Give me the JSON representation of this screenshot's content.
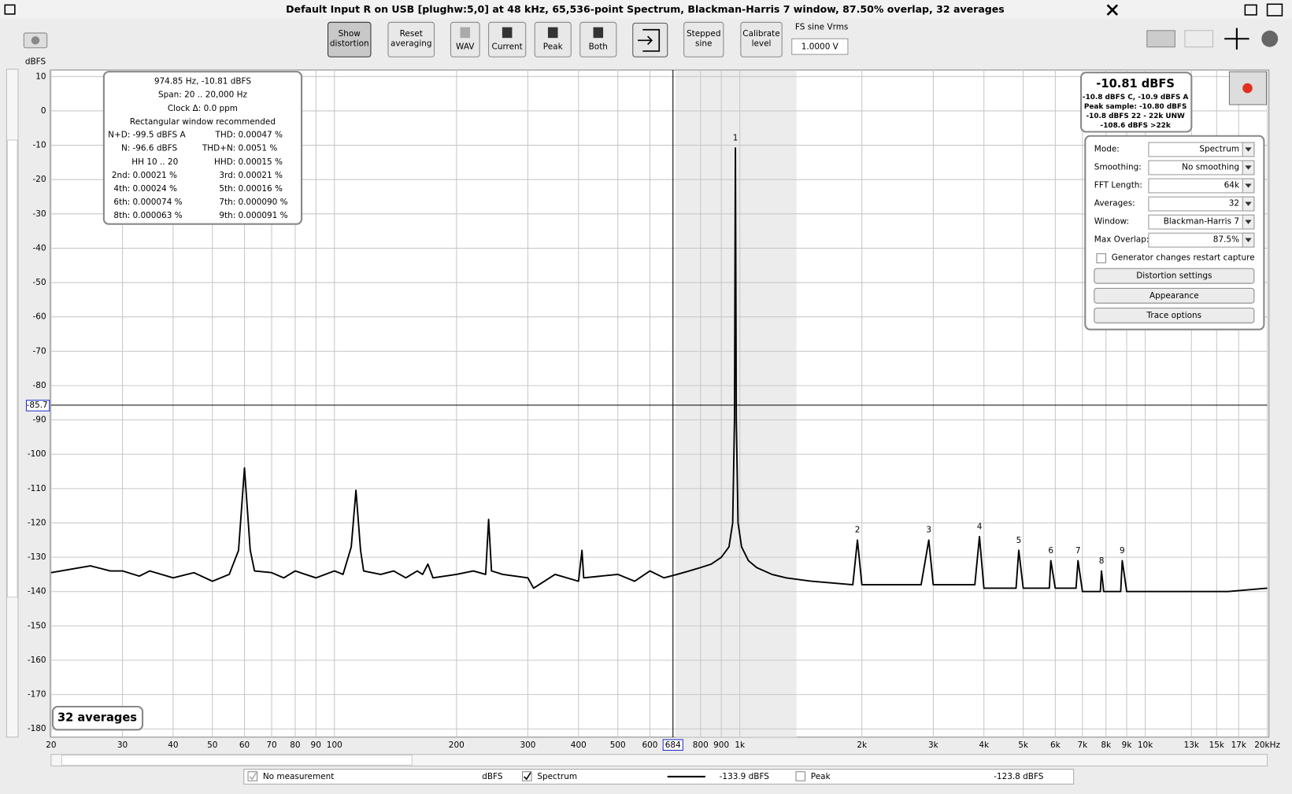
{
  "window_title": "Default Input R on USB [plughw:5,0] at 48 kHz, 65,536-point Spectrum, Blackman-Harris 7 window, 87.50% overlap, 32 averages",
  "toolbar": {
    "buttons": [
      {
        "label": [
          "Show",
          "distortion"
        ],
        "pressed": true
      },
      {
        "label": [
          "Reset",
          "averaging"
        ]
      },
      {
        "label": [
          "WAV"
        ],
        "disabled": true
      },
      {
        "label": [
          "Current"
        ]
      },
      {
        "label": [
          "Peak"
        ]
      },
      {
        "label": [
          "Both"
        ]
      },
      {
        "label": [
          "Stepped",
          "sine"
        ]
      },
      {
        "label": [
          "Calibrate",
          "level"
        ]
      }
    ],
    "fs_label": "FS sine Vrms",
    "fs_value": "1.0000 V"
  },
  "distortion_box": {
    "lines": [
      "974.85 Hz, -10.81 dBFS",
      "Span: 20 .. 20,000 Hz",
      "Clock Δ: 0.0 ppm",
      "Rectangular window recommended"
    ],
    "rows": [
      [
        "N+D:",
        "-99.5 dBFS A",
        "THD:",
        "0.00047 %"
      ],
      [
        "N:",
        "-96.6 dBFS",
        "THD+N:",
        "0.0051 %"
      ],
      [
        "HH 10 .. 20",
        "HHD:",
        "0.00015 %"
      ],
      [
        "2nd:",
        "0.00021 %",
        "3rd:",
        "0.00021 %"
      ],
      [
        "4th:",
        "0.00024 %",
        "5th:",
        "0.00016 %"
      ],
      [
        "6th:",
        "0.000074 %",
        "7th:",
        "0.000090 %"
      ],
      [
        "8th:",
        "0.000063 %",
        "9th:",
        "0.000091 %"
      ]
    ]
  },
  "level_box": {
    "main": "-10.81 dBFS",
    "lines": [
      "-10.8 dBFS C, -10.9 dBFS A",
      "Peak sample: -10.80 dBFS",
      "-10.8 dBFS 22 - 22k UNW",
      "-108.6 dBFS >22k"
    ]
  },
  "settings": {
    "rows": [
      [
        "Mode:",
        "Spectrum"
      ],
      [
        "Smoothing:",
        "No  smoothing"
      ],
      [
        "FFT Length:",
        "64k"
      ],
      [
        "Averages:",
        "32"
      ],
      [
        "Window:",
        "Blackman-Harris 7"
      ],
      [
        "Max Overlap:",
        "87.5%"
      ]
    ],
    "checkbox": "Generator changes restart capture",
    "buttons": [
      "Distortion settings",
      "Appearance",
      "Trace options"
    ]
  },
  "averages_badge": "32 averages",
  "legend": [
    {
      "name": "No measurement",
      "unit": "dBFS",
      "checked": true,
      "disabled": true
    },
    {
      "name": "Spectrum",
      "value": "-133.9 dBFS",
      "checked": true,
      "color": "#000000"
    },
    {
      "name": "Peak",
      "value": "-123.8 dBFS",
      "checked": false,
      "color": "#b00000"
    }
  ],
  "chart_data": {
    "type": "line",
    "y_label": "dBFS",
    "xlog": true,
    "grid": true,
    "xlim": [
      20,
      20000
    ],
    "ylim": [
      -182.4,
      11.9
    ],
    "xticks": [
      20,
      30,
      40,
      50,
      60,
      70,
      80,
      90,
      100,
      200,
      300,
      400,
      500,
      600,
      800,
      900,
      {
        "value": 1000,
        "label": "1k"
      },
      {
        "value": 2000,
        "label": "2k"
      },
      {
        "value": 3000,
        "label": "3k"
      },
      {
        "value": 4000,
        "label": "4k"
      },
      {
        "value": 5000,
        "label": "5k"
      },
      {
        "value": 6000,
        "label": "6k"
      },
      {
        "value": 7000,
        "label": "7k"
      },
      {
        "value": 8000,
        "label": "8k"
      },
      {
        "value": 9000,
        "label": "9k"
      },
      {
        "value": 10000,
        "label": "10k"
      },
      {
        "value": 13000,
        "label": "13k"
      },
      {
        "value": 15000,
        "label": "15k"
      },
      {
        "value": 17000,
        "label": "17k"
      },
      {
        "value": 20000,
        "label": "20kHz"
      }
    ],
    "yticks": [
      10,
      0,
      -10,
      -20,
      -30,
      -40,
      -50,
      -60,
      -70,
      -80,
      -90,
      -100,
      -110,
      -120,
      -130,
      -140,
      -150,
      -160,
      -170,
      -180
    ],
    "shaded_range": [
      694,
      1380
    ],
    "cursor": {
      "x": 684,
      "y": -85.7
    },
    "x": [
      20,
      25,
      28,
      30,
      33,
      35,
      40,
      45,
      50,
      55,
      58,
      60,
      62,
      63.5,
      70,
      75,
      80,
      90,
      100,
      105,
      110,
      113,
      116,
      118,
      130,
      140,
      150,
      160,
      165,
      170,
      175,
      200,
      220,
      236,
      240,
      244,
      260,
      300,
      310,
      350,
      400,
      408,
      412,
      500,
      550,
      600,
      650,
      700,
      750,
      800,
      850,
      900,
      940,
      960,
      970,
      975,
      980,
      990,
      1010,
      1050,
      1100,
      1200,
      1300,
      1500,
      1900,
      1950,
      2000,
      2800,
      2925,
      3000,
      3800,
      3900,
      4000,
      4800,
      4875,
      5000,
      5800,
      5850,
      6000,
      6750,
      6825,
      7000,
      7750,
      7800,
      7900,
      8700,
      8775,
      9000,
      12000,
      16000,
      20000
    ],
    "series": [
      {
        "name": "Spectrum",
        "color": "#000000",
        "values": [
          -134.5,
          -132.5,
          -134,
          -134,
          -135.5,
          -134,
          -136,
          -134.5,
          -137,
          -135,
          -128,
          -104,
          -128,
          -134,
          -134.5,
          -136,
          -134,
          -136,
          -134,
          -135,
          -127,
          -110.5,
          -128,
          -134,
          -135,
          -134,
          -136,
          -134,
          -135,
          -132,
          -136,
          -135,
          -134,
          -135,
          -119,
          -134,
          -135,
          -136,
          -139,
          -135,
          -137,
          -128,
          -136,
          -135,
          -137,
          -134,
          -136,
          -135,
          -134,
          -133,
          -132,
          -130,
          -127,
          -120,
          -90,
          -10.8,
          -90,
          -120,
          -127,
          -131,
          -133,
          -135,
          -136,
          -137,
          -138,
          -125,
          -138,
          -138,
          -125,
          -138,
          -138,
          -124,
          -139,
          -139,
          -128,
          -139,
          -139,
          -131,
          -139,
          -139,
          -131,
          -140,
          -140,
          -134,
          -140,
          -140,
          -131,
          -140,
          -140,
          -140,
          -139
        ]
      }
    ],
    "harmonics": [
      {
        "label": "1",
        "x": 975
      },
      {
        "label": "2",
        "x": 1950
      },
      {
        "label": "3",
        "x": 2925
      },
      {
        "label": "4",
        "x": 3900
      },
      {
        "label": "5",
        "x": 4875
      },
      {
        "label": "6",
        "x": 5850
      },
      {
        "label": "7",
        "x": 6825
      },
      {
        "label": "8",
        "x": 7800
      },
      {
        "label": "9",
        "x": 8775
      }
    ]
  }
}
